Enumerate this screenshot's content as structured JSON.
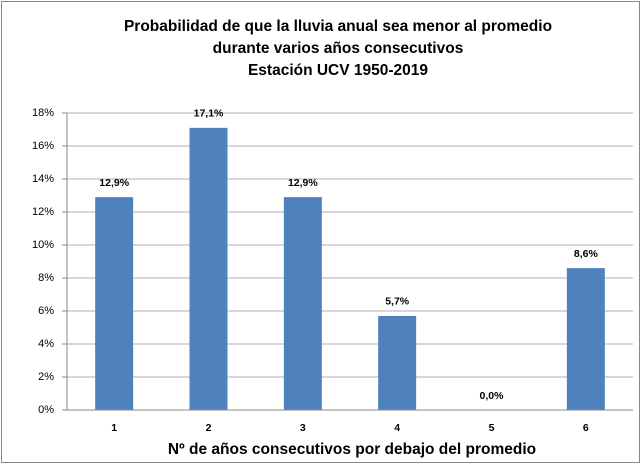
{
  "chart_data": {
    "type": "bar",
    "title": [
      "Probabilidad de que la lluvia anual sea menor al promedio",
      "durante varios años consecutivos",
      "Estación UCV 1950-2019"
    ],
    "x_label": "Nº de años consecutivos por debajo del promedio",
    "categories": [
      "1",
      "2",
      "3",
      "4",
      "5",
      "6"
    ],
    "values": [
      12.9,
      17.1,
      12.9,
      5.7,
      0.0,
      8.6
    ],
    "value_labels": [
      "12,9%",
      "17,1%",
      "12,9%",
      "5,7%",
      "0,0%",
      "8,6%"
    ],
    "color": "#4f81bd",
    "ylim": [
      0,
      18
    ],
    "yticks": [
      {
        "value": 0,
        "label": "0%"
      },
      {
        "value": 2,
        "label": "2%"
      },
      {
        "value": 4,
        "label": "4%"
      },
      {
        "value": 6,
        "label": "6%"
      },
      {
        "value": 8,
        "label": "8%"
      },
      {
        "value": 10,
        "label": "10%"
      },
      {
        "value": 12,
        "label": "12%"
      },
      {
        "value": 14,
        "label": "14%"
      },
      {
        "value": 16,
        "label": "16%"
      },
      {
        "value": 18,
        "label": "18%"
      }
    ],
    "grid": true
  }
}
